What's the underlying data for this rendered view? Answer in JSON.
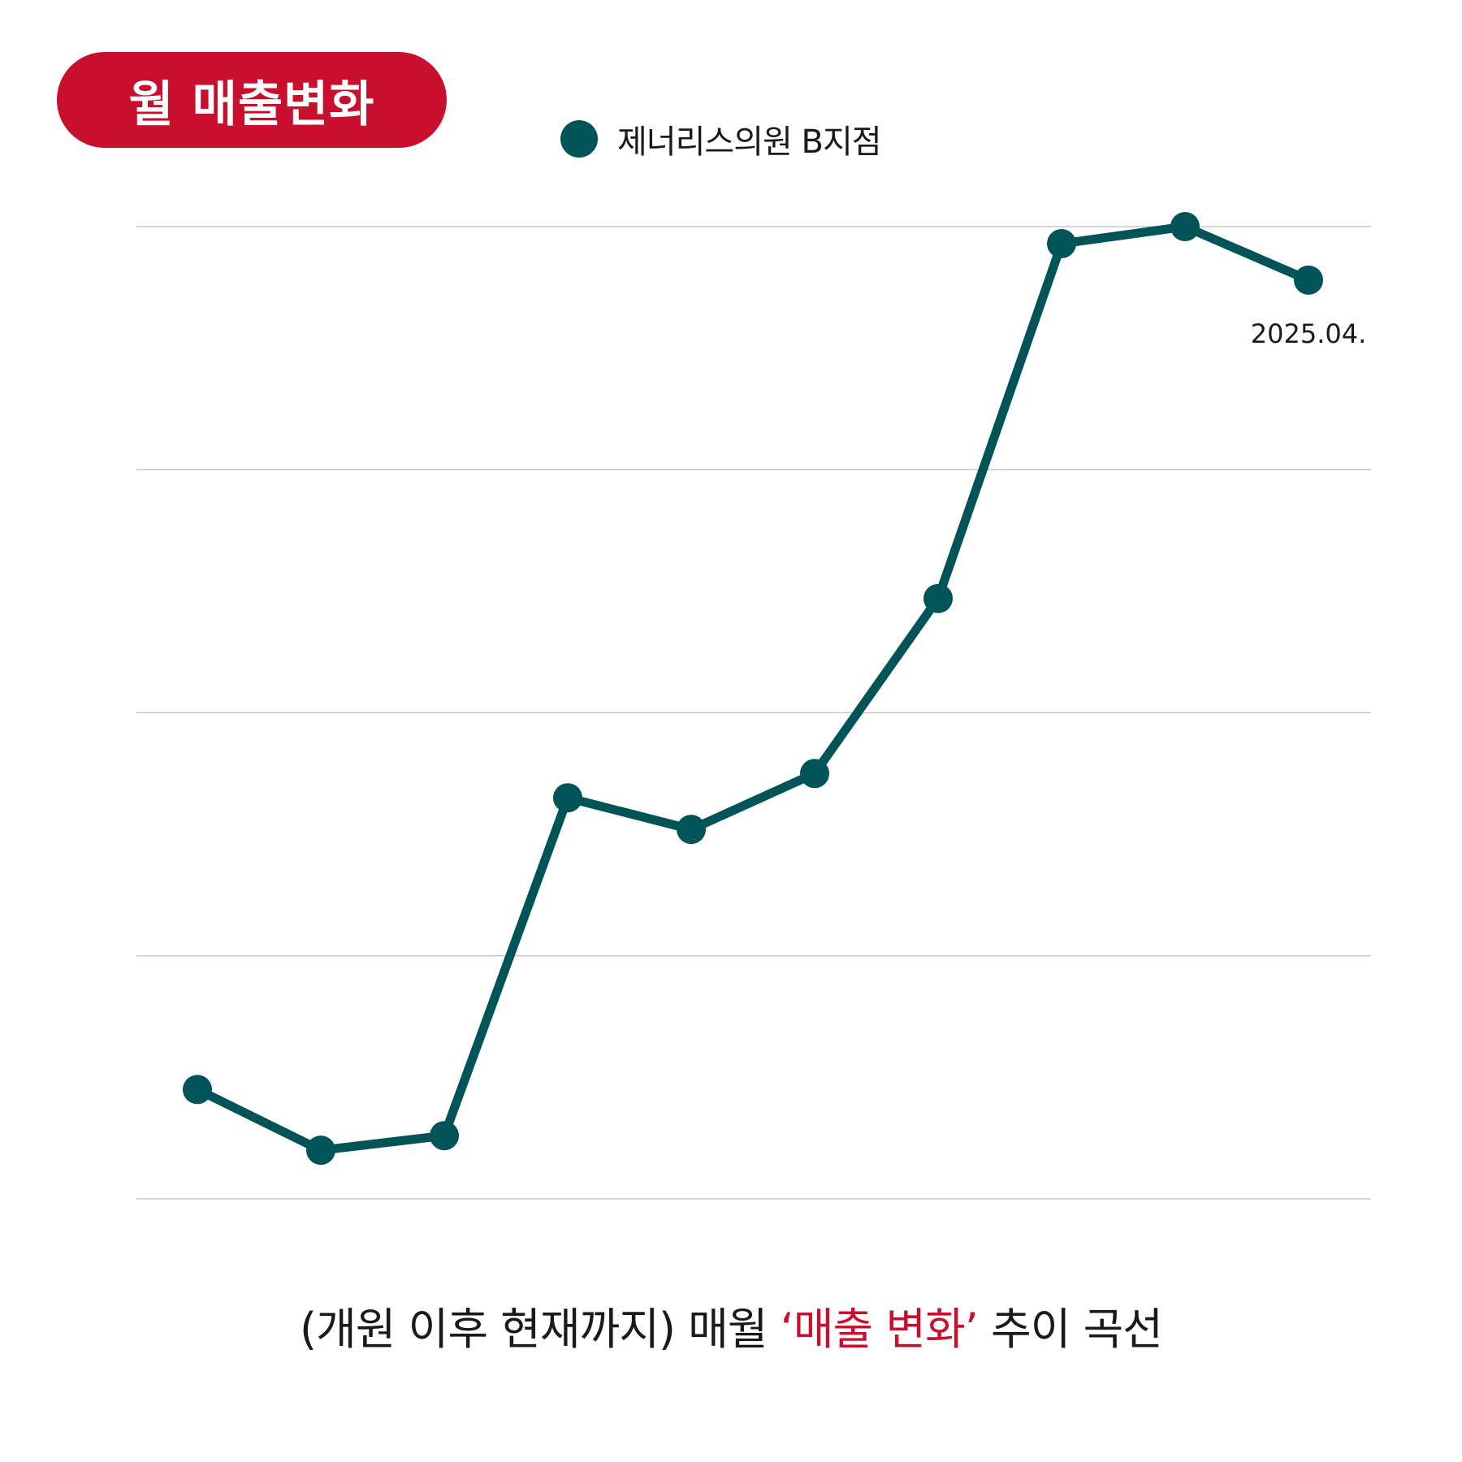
{
  "title": "월 매출변화",
  "caption": {
    "before": "(개원 이후 현재까지) 매월 ",
    "highlight": "‘매출 변화’",
    "after": " 추이 곡선"
  },
  "colors": {
    "accent": "#c8102e",
    "series": "#005457",
    "grid": "#c8c8c8",
    "text": "#1a1a1a"
  },
  "chart_data": {
    "type": "line",
    "series": [
      {
        "name": "제너리스의원 B지점",
        "values": [
          0.45,
          0.2,
          0.26,
          1.65,
          1.52,
          1.75,
          2.47,
          3.93,
          4.0,
          3.78
        ]
      }
    ],
    "annotations": [
      {
        "point_index": 9,
        "text": "2025.04."
      }
    ],
    "ylim": [
      0,
      4
    ],
    "grid": true,
    "legend": "top-center",
    "xlabel": "",
    "ylabel": ""
  }
}
